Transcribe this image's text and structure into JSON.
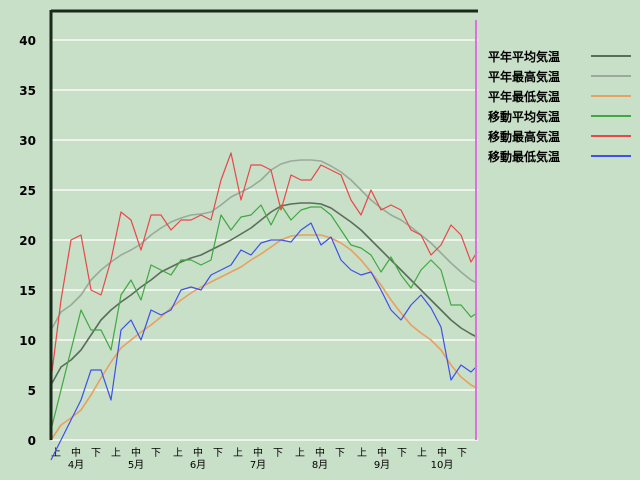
{
  "chart_data": {
    "type": "line",
    "title": "",
    "xlabel": "",
    "ylabel": "",
    "ylim": [
      0,
      43
    ],
    "yticks": [
      0,
      5,
      10,
      15,
      20,
      25,
      30,
      35,
      40
    ],
    "grid": true,
    "legend_placement": "right",
    "x_dekad_labels": [
      "上",
      "中",
      "下"
    ],
    "x_months": [
      "4月",
      "5月",
      "6月",
      "7月",
      "8月",
      "9月",
      "10月"
    ],
    "x": [
      "4/1",
      "4/6",
      "4/11",
      "4/16",
      "4/21",
      "4/26",
      "5/1",
      "5/6",
      "5/11",
      "5/16",
      "5/21",
      "5/26",
      "5/31",
      "6/5",
      "6/10",
      "6/15",
      "6/20",
      "6/25",
      "6/30",
      "7/5",
      "7/10",
      "7/15",
      "7/20",
      "7/25",
      "7/30",
      "8/4",
      "8/9",
      "8/14",
      "8/19",
      "8/24",
      "8/29",
      "9/3",
      "9/8",
      "9/13",
      "9/18",
      "9/23",
      "9/28",
      "10/3",
      "10/8",
      "10/13",
      "10/18",
      "10/23",
      "10/28",
      "10/31"
    ],
    "series": [
      {
        "name": "平年平均気温",
        "color": "#5a6e5a",
        "values": [
          5.5,
          7.3,
          8,
          9,
          10.5,
          12,
          13,
          13.8,
          14.5,
          15.3,
          16,
          16.8,
          17.3,
          17.8,
          18.2,
          18.5,
          19,
          19.5,
          20,
          20.6,
          21.2,
          22,
          22.8,
          23.4,
          23.6,
          23.7,
          23.7,
          23.6,
          23.2,
          22.5,
          21.8,
          21,
          20,
          19,
          18,
          17,
          16,
          15,
          14,
          13,
          12,
          11.2,
          10.6,
          10.3
        ]
      },
      {
        "name": "平年最高気温",
        "color": "#9aaa9a",
        "values": [
          11,
          12.8,
          13.5,
          14.5,
          16,
          17,
          17.8,
          18.5,
          19,
          19.6,
          20.5,
          21.2,
          21.8,
          22.2,
          22.5,
          22.6,
          22.8,
          23.5,
          24.3,
          24.8,
          25.3,
          26,
          27,
          27.6,
          27.9,
          28,
          28,
          27.9,
          27.4,
          26.8,
          26,
          25,
          24,
          23.2,
          22.5,
          22,
          21.3,
          20.5,
          19.7,
          18.7,
          17.7,
          16.8,
          16,
          15.7
        ]
      },
      {
        "name": "平年最低気温",
        "color": "#e8a060",
        "values": [
          0,
          1.5,
          2.2,
          3,
          4.5,
          6.2,
          7.8,
          9.2,
          10,
          10.8,
          11.5,
          12.3,
          13.2,
          14,
          14.7,
          15.3,
          15.8,
          16.3,
          16.8,
          17.3,
          18,
          18.6,
          19.3,
          20,
          20.4,
          20.5,
          20.5,
          20.5,
          20.2,
          19.7,
          19,
          18,
          16.8,
          15.5,
          14,
          12.7,
          11.5,
          10.7,
          10,
          9,
          7.5,
          6.3,
          5.5,
          5.2
        ]
      },
      {
        "name": "移動平均気温",
        "color": "#40a840",
        "values": [
          1,
          5,
          9,
          13,
          11,
          11,
          9,
          14.5,
          16,
          14,
          17.5,
          17,
          16.5,
          18,
          18,
          17.5,
          18,
          22.5,
          21,
          22.3,
          22.5,
          23.5,
          21.5,
          23.5,
          22,
          23,
          23.3,
          23.3,
          22.5,
          21,
          19.5,
          19.2,
          18.5,
          16.8,
          18.3,
          16.5,
          15.2,
          17,
          18,
          17,
          13.5,
          13.5,
          12.3,
          12.7
        ]
      },
      {
        "name": "移動最高気温",
        "color": "#e84848",
        "values": [
          6,
          14,
          20,
          20.5,
          15,
          14.5,
          18,
          22.8,
          22,
          19,
          22.5,
          22.5,
          21,
          22,
          22,
          22.5,
          22,
          26,
          28.7,
          24,
          27.5,
          27.5,
          27,
          23,
          26.5,
          26,
          26,
          27.5,
          27,
          26.5,
          24,
          22.5,
          25,
          23,
          23.5,
          23,
          21,
          20.5,
          18.5,
          19.5,
          21.5,
          20.5,
          17.8,
          18.8
        ]
      },
      {
        "name": "移動最低気温",
        "color": "#4050e8",
        "values": [
          -2,
          0,
          2,
          4,
          7,
          7,
          4,
          11,
          12,
          10,
          13,
          12.5,
          13,
          15,
          15.3,
          15,
          16.5,
          17,
          17.5,
          19,
          18.5,
          19.7,
          20,
          20,
          19.8,
          21,
          21.7,
          19.5,
          20.3,
          18,
          17,
          16.5,
          16.8,
          15,
          13,
          12,
          13.5,
          14.5,
          13.2,
          11.3,
          6,
          7.5,
          6.8,
          7.4
        ]
      }
    ],
    "marker_line_color": "#e070e0"
  }
}
